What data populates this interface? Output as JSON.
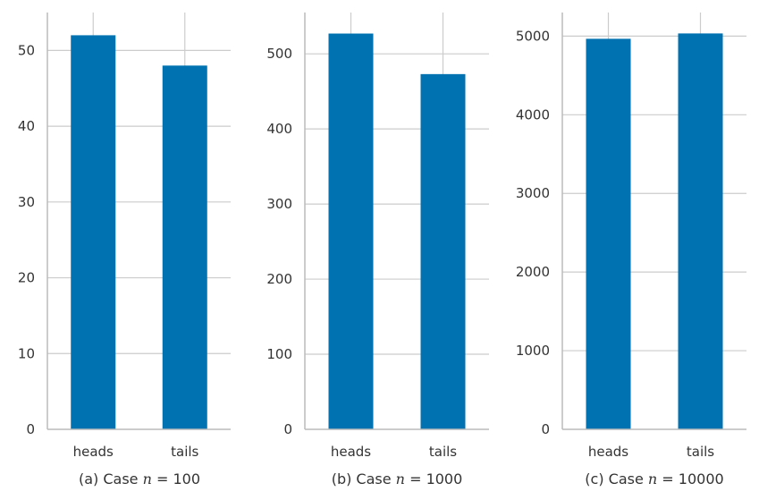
{
  "colors": {
    "bar": "#0072b2",
    "grid": "#cccccc",
    "axis": "#bbbbbb",
    "text": "#333333"
  },
  "chart_data": [
    {
      "type": "bar",
      "categories": [
        "heads",
        "tails"
      ],
      "values": [
        52,
        48
      ],
      "ylim": [
        0,
        55
      ],
      "yticks": [
        0,
        10,
        20,
        30,
        40,
        50
      ],
      "grid": true,
      "caption": {
        "prefix": "(a) Case ",
        "var": "n",
        "suffix": " = 100"
      }
    },
    {
      "type": "bar",
      "categories": [
        "heads",
        "tails"
      ],
      "values": [
        527,
        473
      ],
      "ylim": [
        0,
        555
      ],
      "yticks": [
        0,
        100,
        200,
        300,
        400,
        500
      ],
      "grid": true,
      "caption": {
        "prefix": "(b) Case ",
        "var": "n",
        "suffix": " = 1000"
      }
    },
    {
      "type": "bar",
      "categories": [
        "heads",
        "tails"
      ],
      "values": [
        4966,
        5034
      ],
      "ylim": [
        0,
        5300
      ],
      "yticks": [
        0,
        1000,
        2000,
        3000,
        4000,
        5000
      ],
      "grid": true,
      "caption": {
        "prefix": "(c) Case ",
        "var": "n",
        "suffix": " = 10000"
      }
    }
  ]
}
